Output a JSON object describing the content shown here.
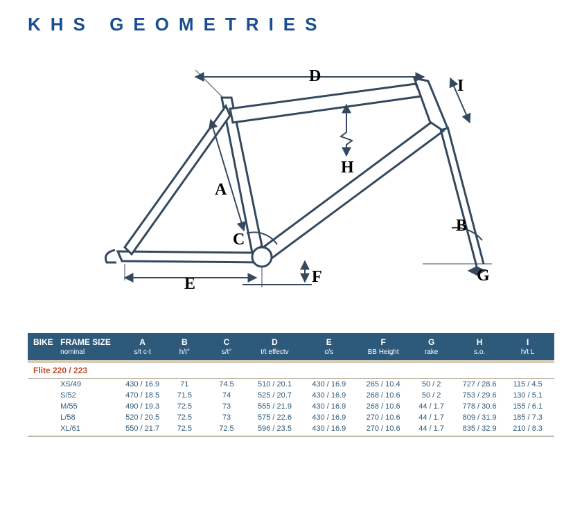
{
  "title": "KHS GEOMETRIES",
  "diagram": {
    "stroke": "#34495e",
    "stroke_width": 3,
    "label_font": "Georgia, serif",
    "label_size": 24,
    "label_weight": "bold",
    "labels": {
      "A": "A",
      "B": "B",
      "C": "C",
      "D": "D",
      "E": "E",
      "F": "F",
      "G": "G",
      "H": "H",
      "I": "I"
    }
  },
  "table": {
    "header_bg": "#2d5a7a",
    "header_fg": "#ffffff",
    "data_fg": "#2d5a7a",
    "model_fg": "#c04a2a",
    "columns": [
      {
        "top": "BIKE",
        "sub": ""
      },
      {
        "top": "FRAME SIZE",
        "sub": "nominal"
      },
      {
        "top": "A",
        "sub": "s/t c-t"
      },
      {
        "top": "B",
        "sub": "h/t°"
      },
      {
        "top": "C",
        "sub": "s/t°"
      },
      {
        "top": "D",
        "sub": "t/t effectv"
      },
      {
        "top": "E",
        "sub": "c/s"
      },
      {
        "top": "F",
        "sub": "BB Height"
      },
      {
        "top": "G",
        "sub": "rake"
      },
      {
        "top": "H",
        "sub": "s.o."
      },
      {
        "top": "I",
        "sub": "h/t L"
      }
    ],
    "model": "Flite 220 / 223",
    "rows": [
      {
        "size": "XS/49",
        "A": "430 / 16.9",
        "B": "71",
        "C": "74.5",
        "D": "510 / 20.1",
        "E": "430 / 16.9",
        "F": "265 / 10.4",
        "G": "50 / 2",
        "H": "727 / 28.6",
        "I": "115 / 4.5"
      },
      {
        "size": "S/52",
        "A": "470 / 18.5",
        "B": "71.5",
        "C": "74",
        "D": "525 / 20.7",
        "E": "430 / 16.9",
        "F": "268 / 10.6",
        "G": "50 / 2",
        "H": "753 / 29.6",
        "I": "130 / 5.1"
      },
      {
        "size": "M/55",
        "A": "490 / 19.3",
        "B": "72.5",
        "C": "73",
        "D": "555 / 21.9",
        "E": "430 / 16.9",
        "F": "268 / 10.6",
        "G": "44 / 1.7",
        "H": "778 / 30.6",
        "I": "155 / 6.1"
      },
      {
        "size": "L/58",
        "A": "520 / 20.5",
        "B": "72.5",
        "C": "73",
        "D": "575 / 22.6",
        "E": "430 / 16.9",
        "F": "270 / 10.6",
        "G": "44 / 1.7",
        "H": "809 / 31.9",
        "I": "185 / 7.3"
      },
      {
        "size": "XL/61",
        "A": "550 / 21.7",
        "B": "72.5",
        "C": "72.5",
        "D": "596 / 23.5",
        "E": "430 / 16.9",
        "F": "270 / 10.6",
        "G": "44 / 1.7",
        "H": "835 / 32.9",
        "I": "210 / 8.3"
      }
    ]
  }
}
